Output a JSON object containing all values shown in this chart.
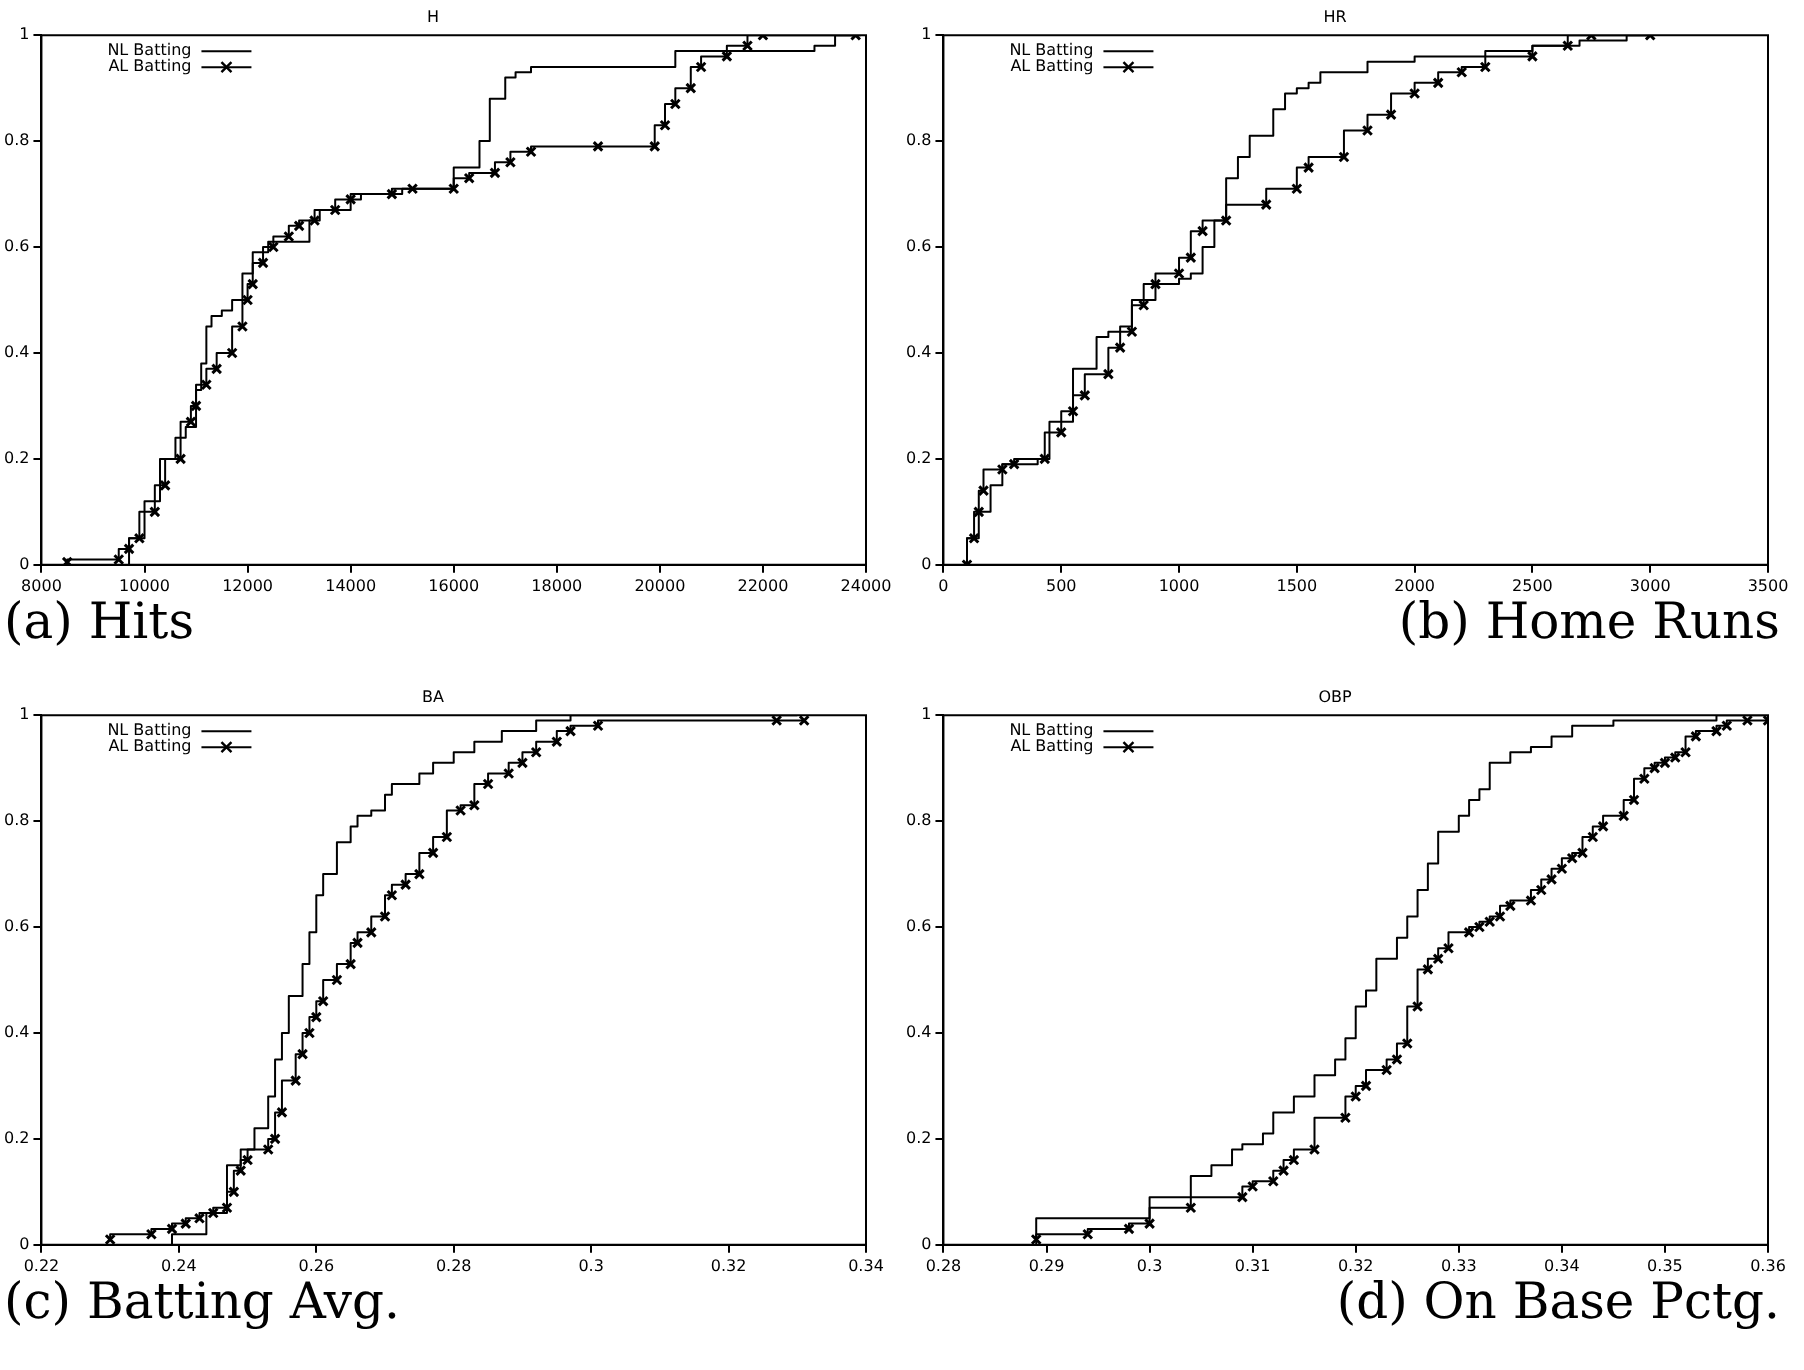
{
  "chart_data": [
    {
      "type": "step",
      "title": "H",
      "annotations": [
        "(a) Hits"
      ],
      "xlim": [
        8000,
        24000
      ],
      "xticks": [
        8000,
        10000,
        12000,
        14000,
        16000,
        18000,
        20000,
        22000,
        24000
      ],
      "ylim": [
        0,
        1
      ],
      "yticks": [
        0,
        0.2,
        0.4,
        0.6,
        0.8,
        1
      ],
      "legend": "top left",
      "line_style": "solid",
      "series": [
        {
          "name": "NL Batting",
          "color": "#000000",
          "marker": "none",
          "x": [
            9700,
            10000,
            10300,
            10600,
            10800,
            11000,
            11100,
            11200,
            11300,
            11500,
            11700,
            11900,
            12100,
            12400,
            12700,
            13200,
            13400,
            14000,
            14200,
            15000,
            16000,
            16500,
            16700,
            17000,
            17200,
            17500,
            18100,
            19000,
            20300,
            20500,
            21500,
            23000,
            23400,
            23900
          ],
          "values": [
            0,
            0.05,
            0.12,
            0.2,
            0.24,
            0.26,
            0.33,
            0.38,
            0.45,
            0.47,
            0.48,
            0.5,
            0.55,
            0.59,
            0.61,
            0.61,
            0.65,
            0.67,
            0.69,
            0.7,
            0.71,
            0.75,
            0.8,
            0.88,
            0.92,
            0.93,
            0.94,
            0.94,
            0.94,
            0.97,
            0.97,
            0.97,
            0.98,
            1
          ]
        },
        {
          "name": "AL Batting",
          "color": "#000000",
          "marker": "cross",
          "x": [
            8500,
            9500,
            9700,
            9900,
            10200,
            10400,
            10700,
            10900,
            11000,
            11200,
            11400,
            11700,
            11900,
            12000,
            12100,
            12300,
            12500,
            12800,
            13000,
            13300,
            13700,
            14000,
            14800,
            15200,
            16000,
            16300,
            16800,
            17100,
            17500,
            18800,
            19900,
            20100,
            20300,
            20600,
            20800,
            21300,
            21700,
            22000,
            23800
          ],
          "values": [
            0.005,
            0.01,
            0.03,
            0.05,
            0.1,
            0.15,
            0.2,
            0.27,
            0.3,
            0.34,
            0.37,
            0.4,
            0.45,
            0.5,
            0.53,
            0.57,
            0.6,
            0.62,
            0.64,
            0.65,
            0.67,
            0.69,
            0.7,
            0.71,
            0.71,
            0.73,
            0.74,
            0.76,
            0.78,
            0.79,
            0.79,
            0.83,
            0.87,
            0.9,
            0.94,
            0.96,
            0.98,
            1,
            1
          ]
        }
      ]
    },
    {
      "type": "step",
      "title": "HR",
      "annotations": [
        "(b) Home Runs"
      ],
      "xlim": [
        0,
        3500
      ],
      "xticks": [
        0,
        500,
        1000,
        1500,
        2000,
        2500,
        3000,
        3500
      ],
      "ylim": [
        0,
        1
      ],
      "yticks": [
        0,
        0.2,
        0.4,
        0.6,
        0.8,
        1
      ],
      "legend": "top left",
      "line_style": "solid",
      "series": [
        {
          "name": "NL Batting",
          "color": "#000000",
          "marker": "none",
          "x": [
            100,
            150,
            200,
            250,
            300,
            400,
            450,
            550,
            650,
            700,
            750,
            800,
            900,
            1000,
            1050,
            1100,
            1150,
            1200,
            1250,
            1300,
            1400,
            1450,
            1500,
            1550,
            1600,
            1800,
            2000,
            2300,
            2500,
            2700,
            2900,
            3000
          ],
          "values": [
            0,
            0.05,
            0.1,
            0.15,
            0.19,
            0.19,
            0.2,
            0.27,
            0.37,
            0.43,
            0.44,
            0.45,
            0.5,
            0.53,
            0.54,
            0.55,
            0.6,
            0.65,
            0.73,
            0.77,
            0.81,
            0.86,
            0.89,
            0.9,
            0.91,
            0.93,
            0.95,
            0.96,
            0.97,
            0.98,
            0.99,
            1
          ]
        },
        {
          "name": "AL Batting",
          "color": "#000000",
          "marker": "cross",
          "x": [
            100,
            130,
            150,
            170,
            250,
            300,
            430,
            500,
            550,
            600,
            700,
            750,
            800,
            850,
            900,
            1000,
            1050,
            1100,
            1200,
            1370,
            1500,
            1550,
            1700,
            1800,
            1900,
            2000,
            2100,
            2200,
            2300,
            2500,
            2650,
            2750,
            3000
          ],
          "values": [
            0,
            0.05,
            0.1,
            0.14,
            0.18,
            0.19,
            0.2,
            0.25,
            0.29,
            0.32,
            0.36,
            0.41,
            0.44,
            0.49,
            0.53,
            0.55,
            0.58,
            0.63,
            0.65,
            0.68,
            0.71,
            0.75,
            0.77,
            0.82,
            0.85,
            0.89,
            0.91,
            0.93,
            0.94,
            0.96,
            0.98,
            1,
            1
          ]
        }
      ]
    },
    {
      "type": "step",
      "title": "BA",
      "annotations": [
        "(c) Batting Avg."
      ],
      "xlim": [
        0.22,
        0.34
      ],
      "xticks": [
        0.22,
        0.24,
        0.26,
        0.28,
        0.3,
        0.32,
        0.34
      ],
      "ylim": [
        0,
        1
      ],
      "yticks": [
        0,
        0.2,
        0.4,
        0.6,
        0.8,
        1
      ],
      "legend": "top left",
      "line_style": "solid",
      "series": [
        {
          "name": "NL Batting",
          "color": "#000000",
          "marker": "none",
          "x": [
            0.239,
            0.244,
            0.247,
            0.249,
            0.251,
            0.253,
            0.254,
            0.255,
            0.256,
            0.258,
            0.259,
            0.26,
            0.261,
            0.263,
            0.265,
            0.266,
            0.268,
            0.27,
            0.271,
            0.275,
            0.277,
            0.28,
            0.283,
            0.287,
            0.292,
            0.297,
            0.303,
            0.33
          ],
          "values": [
            0,
            0.02,
            0.06,
            0.15,
            0.18,
            0.22,
            0.28,
            0.35,
            0.4,
            0.47,
            0.53,
            0.59,
            0.66,
            0.7,
            0.76,
            0.79,
            0.81,
            0.82,
            0.85,
            0.87,
            0.89,
            0.91,
            0.93,
            0.95,
            0.97,
            0.99,
            1,
            1
          ]
        },
        {
          "name": "AL Batting",
          "color": "#000000",
          "marker": "cross",
          "x": [
            0.23,
            0.236,
            0.239,
            0.241,
            0.243,
            0.245,
            0.247,
            0.248,
            0.249,
            0.25,
            0.253,
            0.254,
            0.255,
            0.257,
            0.258,
            0.259,
            0.26,
            0.261,
            0.263,
            0.265,
            0.266,
            0.268,
            0.27,
            0.271,
            0.273,
            0.275,
            0.277,
            0.279,
            0.281,
            0.283,
            0.285,
            0.288,
            0.29,
            0.292,
            0.295,
            0.297,
            0.301,
            0.327,
            0.331
          ],
          "values": [
            0.01,
            0.02,
            0.03,
            0.04,
            0.05,
            0.06,
            0.07,
            0.1,
            0.14,
            0.16,
            0.18,
            0.2,
            0.25,
            0.31,
            0.36,
            0.4,
            0.43,
            0.46,
            0.5,
            0.53,
            0.57,
            0.59,
            0.62,
            0.66,
            0.68,
            0.7,
            0.74,
            0.77,
            0.82,
            0.83,
            0.87,
            0.89,
            0.91,
            0.93,
            0.95,
            0.97,
            0.98,
            0.99,
            0.99
          ]
        }
      ]
    },
    {
      "type": "step",
      "title": "OBP",
      "annotations": [
        "(d) On Base Pctg."
      ],
      "xlim": [
        0.28,
        0.36
      ],
      "xticks": [
        0.28,
        0.29,
        0.3,
        0.31,
        0.32,
        0.33,
        0.34,
        0.35,
        0.36
      ],
      "ylim": [
        0,
        1
      ],
      "yticks": [
        0,
        0.2,
        0.4,
        0.6,
        0.8,
        1
      ],
      "legend": "top left",
      "line_style": "solid",
      "series": [
        {
          "name": "NL Batting",
          "color": "#000000",
          "marker": "none",
          "x": [
            0.289,
            0.3,
            0.304,
            0.306,
            0.308,
            0.309,
            0.311,
            0.312,
            0.314,
            0.316,
            0.318,
            0.319,
            0.32,
            0.321,
            0.322,
            0.324,
            0.325,
            0.326,
            0.327,
            0.328,
            0.33,
            0.331,
            0.332,
            0.333,
            0.335,
            0.337,
            0.339,
            0.341,
            0.345,
            0.355,
            0.358,
            0.36
          ],
          "values": [
            0,
            0.05,
            0.09,
            0.13,
            0.15,
            0.18,
            0.19,
            0.21,
            0.25,
            0.28,
            0.32,
            0.35,
            0.39,
            0.45,
            0.48,
            0.54,
            0.58,
            0.62,
            0.67,
            0.72,
            0.78,
            0.81,
            0.84,
            0.86,
            0.91,
            0.93,
            0.94,
            0.96,
            0.98,
            0.99,
            1,
            1
          ]
        },
        {
          "name": "AL Batting",
          "color": "#000000",
          "marker": "cross",
          "x": [
            0.289,
            0.294,
            0.298,
            0.3,
            0.304,
            0.309,
            0.31,
            0.312,
            0.313,
            0.314,
            0.316,
            0.319,
            0.32,
            0.321,
            0.323,
            0.324,
            0.325,
            0.326,
            0.327,
            0.328,
            0.329,
            0.331,
            0.332,
            0.333,
            0.334,
            0.335,
            0.337,
            0.338,
            0.339,
            0.34,
            0.341,
            0.342,
            0.343,
            0.344,
            0.346,
            0.347,
            0.348,
            0.349,
            0.35,
            0.351,
            0.352,
            0.353,
            0.355,
            0.356,
            0.358,
            0.36
          ],
          "values": [
            0.01,
            0.02,
            0.03,
            0.04,
            0.07,
            0.09,
            0.11,
            0.12,
            0.14,
            0.16,
            0.18,
            0.24,
            0.28,
            0.3,
            0.33,
            0.35,
            0.38,
            0.45,
            0.52,
            0.54,
            0.56,
            0.59,
            0.6,
            0.61,
            0.62,
            0.64,
            0.65,
            0.67,
            0.69,
            0.71,
            0.73,
            0.74,
            0.77,
            0.79,
            0.81,
            0.84,
            0.88,
            0.9,
            0.91,
            0.92,
            0.93,
            0.96,
            0.97,
            0.98,
            0.99,
            0.99
          ]
        }
      ]
    }
  ]
}
